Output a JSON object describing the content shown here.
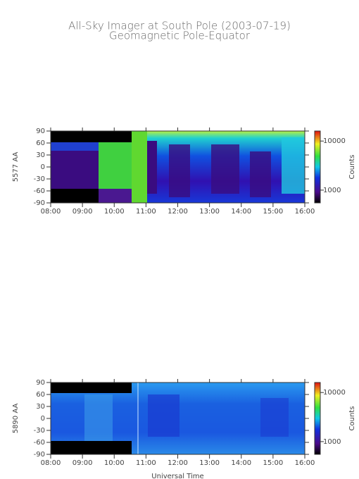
{
  "chart_data": [
    {
      "type": "heatmap",
      "title": "All-Sky Imager at South Pole (2003-07-19)",
      "subtitle": "Geomagnetic Pole-Equator",
      "ylabel": "5577 AA",
      "ylim": [
        -90,
        90
      ],
      "yticks": [
        90,
        60,
        30,
        0,
        -30,
        -60,
        -90
      ],
      "xlim": [
        8,
        16
      ],
      "xticks": [
        {
          "value": 8,
          "label": "08:00"
        },
        {
          "value": 9,
          "label": "09:00"
        },
        {
          "value": 10,
          "label": "10:00"
        },
        {
          "value": 11,
          "label": "11:00"
        },
        {
          "value": 12,
          "label": "12:00"
        },
        {
          "value": 13,
          "label": "13:00"
        },
        {
          "value": 14,
          "label": "14:00"
        },
        {
          "value": 15,
          "label": "15:00"
        },
        {
          "value": 16,
          "label": "16:00"
        }
      ],
      "colorbar": {
        "label": "Counts",
        "log": true,
        "lim": [
          550,
          16000
        ],
        "ticks": [
          10000,
          1000
        ]
      }
    },
    {
      "type": "heatmap",
      "ylabel": "5890 AA",
      "xlabel": "Universal Time",
      "ylim": [
        -90,
        90
      ],
      "yticks": [
        90,
        60,
        30,
        0,
        -30,
        -60,
        -90
      ],
      "xlim": [
        8,
        16
      ],
      "xticks": [
        {
          "value": 8,
          "label": "08:00"
        },
        {
          "value": 9,
          "label": "09:00"
        },
        {
          "value": 10,
          "label": "10:00"
        },
        {
          "value": 11,
          "label": "11:00"
        },
        {
          "value": 12,
          "label": "12:00"
        },
        {
          "value": 13,
          "label": "13:00"
        },
        {
          "value": 14,
          "label": "14:00"
        },
        {
          "value": 15,
          "label": "15:00"
        },
        {
          "value": 16,
          "label": "16:00"
        }
      ],
      "colorbar": {
        "label": "Counts",
        "log": true,
        "lim": [
          550,
          16000
        ],
        "ticks": [
          10000,
          1000
        ]
      }
    }
  ]
}
